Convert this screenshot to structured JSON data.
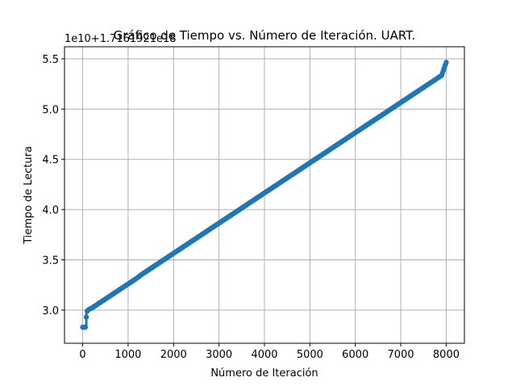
{
  "chart_data": {
    "type": "scatter",
    "title": "Gráfico de Tiempo vs. Número de Iteración. UART.",
    "xlabel": "Número de Iteración",
    "ylabel": "Tiempo de Lectura",
    "y_offset_label": "1e10+1.716192​1e18",
    "xlim": [
      -400,
      8400
    ],
    "ylim": [
      2.67,
      5.62
    ],
    "x_ticks": [
      0,
      1000,
      2000,
      3000,
      4000,
      5000,
      6000,
      7000,
      8000
    ],
    "x_tick_labels": [
      "0",
      "1000",
      "2000",
      "3000",
      "4000",
      "5000",
      "6000",
      "7000",
      "8000"
    ],
    "y_ticks": [
      3.0,
      3.5,
      4.0,
      4.5,
      5.0,
      5.5
    ],
    "y_tick_labels": [
      "3.0",
      "3.5",
      "4.0",
      "4.5",
      "5.0",
      "5.5"
    ],
    "grid": true,
    "marker": "circle",
    "series": [
      {
        "color": "#1f77b4",
        "x": [
          0,
          10,
          20,
          30,
          40,
          50,
          60,
          80,
          100,
          120,
          150,
          200,
          300,
          400,
          500,
          600,
          700,
          800,
          900,
          1000,
          1100,
          1200,
          1300,
          1400,
          1500,
          1600,
          1700,
          1800,
          1900,
          2000,
          2100,
          2200,
          2300,
          2400,
          2500,
          2600,
          2700,
          2800,
          2900,
          3000,
          3100,
          3200,
          3300,
          3400,
          3500,
          3600,
          3700,
          3800,
          3900,
          4000,
          4100,
          4200,
          4300,
          4400,
          4500,
          4600,
          4700,
          4800,
          4900,
          5000,
          5100,
          5200,
          5300,
          5400,
          5500,
          5600,
          5700,
          5800,
          5900,
          6000,
          6100,
          6200,
          6300,
          6400,
          6500,
          6600,
          6700,
          6800,
          6900,
          7000,
          7100,
          7200,
          7300,
          7400,
          7500,
          7600,
          7700,
          7800,
          7900,
          8000
        ],
        "y": [
          2.83,
          2.83,
          2.83,
          2.83,
          2.83,
          2.83,
          2.83,
          2.93,
          2.99,
          3.0,
          3.01,
          3.02,
          3.05,
          3.08,
          3.11,
          3.14,
          3.17,
          3.2,
          3.23,
          3.26,
          3.29,
          3.32,
          3.355,
          3.385,
          3.415,
          3.445,
          3.475,
          3.505,
          3.535,
          3.565,
          3.595,
          3.625,
          3.655,
          3.685,
          3.715,
          3.745,
          3.775,
          3.805,
          3.835,
          3.865,
          3.895,
          3.925,
          3.955,
          3.985,
          4.015,
          4.045,
          4.075,
          4.105,
          4.135,
          4.165,
          4.195,
          4.225,
          4.255,
          4.285,
          4.315,
          4.345,
          4.375,
          4.405,
          4.435,
          4.465,
          4.495,
          4.525,
          4.555,
          4.585,
          4.615,
          4.645,
          4.675,
          4.705,
          4.735,
          4.765,
          4.795,
          4.825,
          4.855,
          4.885,
          4.915,
          4.945,
          4.975,
          5.005,
          5.035,
          5.065,
          5.095,
          5.125,
          5.155,
          5.185,
          5.215,
          5.245,
          5.275,
          5.305,
          5.335,
          5.465
        ]
      }
    ]
  }
}
